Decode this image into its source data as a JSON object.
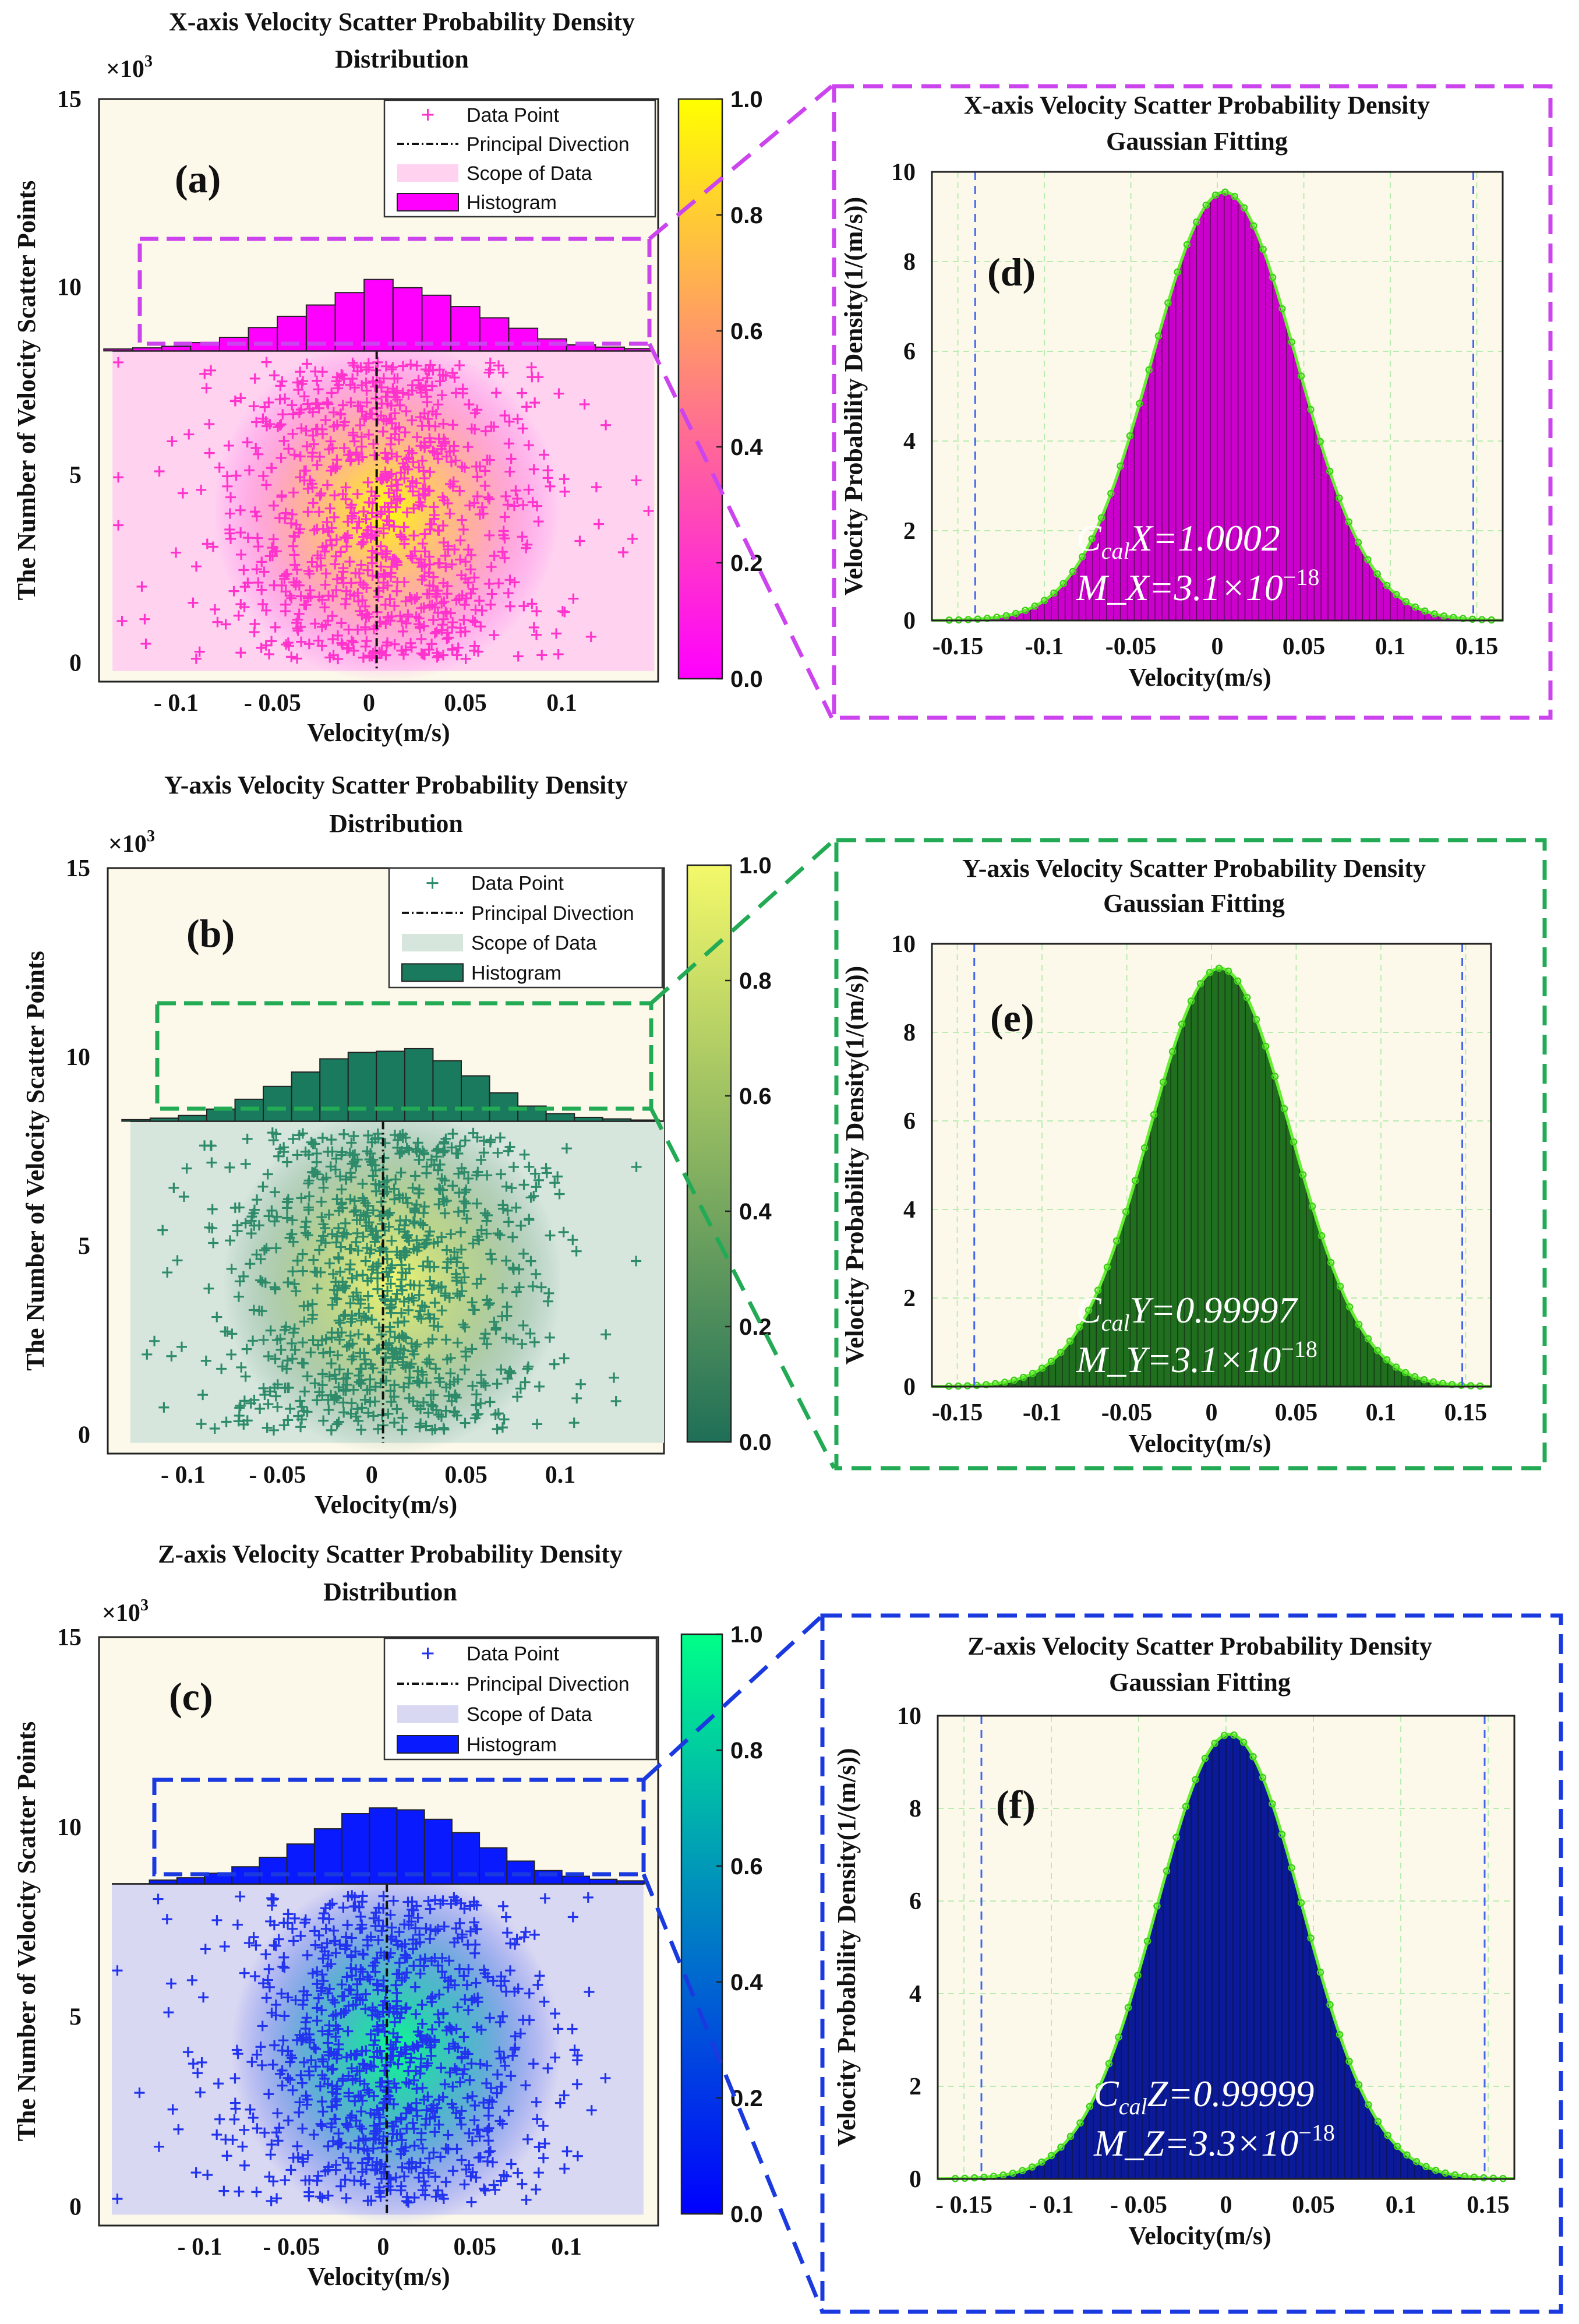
{
  "scale_note": "×10",
  "scale_exp": "3",
  "chart_data": [
    {
      "type": "scatter",
      "panel": "(a)",
      "axis": "X",
      "title_line1": "X-axis Velocity Scatter Probability Density",
      "title_line2": "Distribution",
      "xlabel": "Velocity(m/s)",
      "ylabel": "The Number of Velocity Scatter Points",
      "xlim": [
        -0.14,
        0.15
      ],
      "ylim": [
        -0.5,
        15
      ],
      "xticks": [
        "- 0.1",
        "- 0.05",
        "0",
        "0.05",
        "0.1"
      ],
      "xtick_values": [
        -0.1,
        -0.05,
        0,
        0.05,
        0.1
      ],
      "yticks": [
        "0",
        "5",
        "10",
        "15"
      ],
      "ytick_values": [
        0,
        5,
        10,
        15
      ],
      "scope_xrange": [
        -0.133,
        0.148
      ],
      "scope_top": 8.3,
      "histogram_centers": [
        -0.13,
        -0.115,
        -0.1,
        -0.085,
        -0.07,
        -0.055,
        -0.04,
        -0.025,
        -0.01,
        0.005,
        0.02,
        0.035,
        0.05,
        0.065,
        0.08,
        0.095,
        0.11,
        0.125,
        0.14
      ],
      "histogram_tops": [
        8.35,
        8.38,
        8.42,
        8.52,
        8.66,
        8.92,
        9.22,
        9.52,
        9.85,
        10.2,
        9.98,
        9.78,
        9.48,
        9.18,
        8.9,
        8.62,
        8.46,
        8.4,
        8.36
      ],
      "principal_direction_x": 0.004,
      "marker": "+",
      "colorbar": {
        "ticks": [
          "0.0",
          "0.2",
          "0.4",
          "0.6",
          "0.8",
          "1.0"
        ],
        "low": "#ff00ff",
        "high": "#ffff00"
      },
      "legend": [
        "Data Point",
        "Principal Divection",
        "Scope of Data",
        "Histogram"
      ],
      "colors": {
        "marker": "#ff33cc",
        "scope": "#ffd2f0",
        "hist": "#ff00ff",
        "bg": "#fcf9ea",
        "box": "#cc44ee"
      }
    },
    {
      "type": "scatter",
      "panel": "(b)",
      "axis": "Y",
      "title_line1": "Y-axis Velocity Scatter Probability Density",
      "title_line2": "Distribution",
      "xlabel": "Velocity(m/s)",
      "ylabel": "The Number of Velocity Scatter Points",
      "xlim": [
        -0.14,
        0.155
      ],
      "ylim": [
        -0.5,
        15
      ],
      "xticks": [
        "- 0.1",
        "- 0.05",
        "0",
        "0.05",
        "0.1"
      ],
      "xtick_values": [
        -0.1,
        -0.05,
        0,
        0.05,
        0.1
      ],
      "yticks": [
        "0",
        "5",
        "10",
        "15"
      ],
      "ytick_values": [
        0,
        5,
        10,
        15
      ],
      "scope_xrange": [
        -0.128,
        0.155
      ],
      "scope_top": 8.3,
      "histogram_centers": [
        -0.125,
        -0.11,
        -0.095,
        -0.08,
        -0.065,
        -0.05,
        -0.035,
        -0.02,
        -0.005,
        0.01,
        0.025,
        0.04,
        0.055,
        0.07,
        0.085,
        0.1,
        0.115,
        0.13,
        0.145
      ],
      "histogram_tops": [
        8.34,
        8.38,
        8.45,
        8.62,
        8.88,
        9.22,
        9.6,
        9.95,
        10.12,
        10.15,
        10.22,
        9.9,
        9.5,
        9.05,
        8.7,
        8.5,
        8.4,
        8.36,
        8.33
      ],
      "principal_direction_x": 0.006,
      "marker": "+",
      "colorbar": {
        "ticks": [
          "0.0",
          "0.2",
          "0.4",
          "0.6",
          "0.8",
          "1.0"
        ],
        "low": "#1f6f57",
        "high": "#f4f96a"
      },
      "legend": [
        "Data Point",
        "Principal Divection",
        "Scope of Data",
        "Histogram"
      ],
      "colors": {
        "marker": "#2e8b6a",
        "scope": "#d6e6dc",
        "hist": "#1a7a5e",
        "bg": "#fcf9ea",
        "box": "#22aa55"
      }
    },
    {
      "type": "scatter",
      "panel": "(c)",
      "axis": "Z",
      "title_line1": "Z-axis Velocity Scatter Probability Density",
      "title_line2": "Distribution",
      "xlabel": "Velocity(m/s)",
      "ylabel": "The Number of Velocity Scatter Points",
      "xlim": [
        -0.155,
        0.15
      ],
      "ylim": [
        -0.5,
        15
      ],
      "xticks": [
        "- 0.1",
        "- 0.05",
        "0",
        "0.05",
        "0.1"
      ],
      "xtick_values": [
        -0.1,
        -0.05,
        0,
        0.05,
        0.1
      ],
      "yticks": [
        "0",
        "5",
        "10",
        "15"
      ],
      "ytick_values": [
        0,
        5,
        10,
        15
      ],
      "scope_xrange": [
        -0.148,
        0.142
      ],
      "scope_top": 8.5,
      "histogram_centers": [
        -0.12,
        -0.105,
        -0.09,
        -0.075,
        -0.06,
        -0.045,
        -0.03,
        -0.015,
        0.0,
        0.015,
        0.03,
        0.045,
        0.06,
        0.075,
        0.09,
        0.105,
        0.12,
        0.135
      ],
      "histogram_tops": [
        8.6,
        8.66,
        8.78,
        8.95,
        9.2,
        9.55,
        9.95,
        10.35,
        10.5,
        10.45,
        10.2,
        9.85,
        9.45,
        9.1,
        8.85,
        8.7,
        8.62,
        8.58
      ],
      "principal_direction_x": 0.002,
      "marker": "+",
      "colorbar": {
        "ticks": [
          "0.0",
          "0.2",
          "0.4",
          "0.6",
          "0.8",
          "1.0"
        ],
        "low": "#0000ff",
        "high": "#00ff88"
      },
      "legend": [
        "Data Point",
        "Principal Divection",
        "Scope of Data",
        "Histogram"
      ],
      "colors": {
        "marker": "#2233ee",
        "scope": "#d8d8f2",
        "hist": "#0a1aff",
        "bg": "#fcf9ea",
        "box": "#1a3ae0"
      }
    },
    {
      "type": "area",
      "panel": "(d)",
      "axis": "X",
      "title_line1": "X-axis Velocity Scatter Probability Density",
      "title_line2": "Gaussian Fitting",
      "xlabel": "Velocity(m/s)",
      "ylabel": "Velocity Probability Density(1/(m/s))",
      "xlim": [
        -0.165,
        0.165
      ],
      "ylim": [
        0,
        10
      ],
      "xticks": [
        "-0.15",
        "-0.1",
        "-0.05",
        "0",
        "0.05",
        "0.1",
        "0.15"
      ],
      "xtick_values": [
        -0.15,
        -0.1,
        -0.05,
        0,
        0.05,
        0.1,
        0.15
      ],
      "yticks": [
        "0",
        "2",
        "4",
        "6",
        "8",
        "10"
      ],
      "ytick_values": [
        0,
        2,
        4,
        6,
        8,
        10
      ],
      "gaussian_mean": 0.004,
      "gaussian_sigma": 0.042,
      "gaussian_peak": 9.55,
      "vlines": [
        -0.14,
        0.148
      ],
      "annotation_c_sub": "cal",
      "annotation_c_label": "X=1.0002",
      "annotation_m": "M_X=3.1×10",
      "annotation_m_exp": "−18",
      "grid": true,
      "colors": {
        "fill": "#cc00cc",
        "curve": "#66ee33",
        "bg": "#fcf9ea",
        "box": "#cc44ee"
      }
    },
    {
      "type": "area",
      "panel": "(e)",
      "axis": "Y",
      "title_line1": "Y-axis Velocity Scatter Probability Density",
      "title_line2": "Gaussian Fitting",
      "xlabel": "Velocity(m/s)",
      "ylabel": "Velocity Probability Density(1/(m/s))",
      "xlim": [
        -0.165,
        0.165
      ],
      "ylim": [
        0,
        10
      ],
      "xticks": [
        "-0.15",
        "-0.1",
        "-0.05",
        "0",
        "0.05",
        "0.1",
        "0.15"
      ],
      "xtick_values": [
        -0.15,
        -0.1,
        -0.05,
        0,
        0.05,
        0.1,
        0.15
      ],
      "yticks": [
        "0",
        "2",
        "4",
        "6",
        "8",
        "10"
      ],
      "ytick_values": [
        0,
        2,
        4,
        6,
        8,
        10
      ],
      "gaussian_mean": 0.005,
      "gaussian_sigma": 0.042,
      "gaussian_peak": 9.45,
      "vlines": [
        -0.14,
        0.148
      ],
      "annotation_c_sub": "cal",
      "annotation_c_label": "Y=0.99997",
      "annotation_m": "M_Y=3.1×10",
      "annotation_m_exp": "−18",
      "grid": true,
      "colors": {
        "fill": "#1f6f1f",
        "curve": "#66ee33",
        "bg": "#fcf9ea",
        "box": "#22aa55"
      }
    },
    {
      "type": "area",
      "panel": "(f)",
      "axis": "Z",
      "title_line1": "Z-axis Velocity Scatter Probability Density",
      "title_line2": "Gaussian Fitting",
      "xlabel": "Velocity(m/s)",
      "ylabel": "Velocity Probability Density(1/(m/s))",
      "xlim": [
        -0.165,
        0.165
      ],
      "ylim": [
        0,
        10
      ],
      "xticks": [
        "- 0.15",
        "- 0.1",
        "- 0.05",
        "0",
        "0.05",
        "0.1",
        "0.15"
      ],
      "xtick_values": [
        -0.15,
        -0.1,
        -0.05,
        0,
        0.05,
        0.1,
        0.15
      ],
      "yticks": [
        "0",
        "2",
        "4",
        "6",
        "8",
        "10"
      ],
      "ytick_values": [
        0,
        2,
        4,
        6,
        8,
        10
      ],
      "gaussian_mean": 0.002,
      "gaussian_sigma": 0.042,
      "gaussian_peak": 9.6,
      "vlines": [
        -0.14,
        0.148
      ],
      "annotation_c_sub": "cal",
      "annotation_c_label": "Z=0.99999",
      "annotation_m": "M_Z=3.3×10",
      "annotation_m_exp": "−18",
      "grid": true,
      "colors": {
        "fill": "#0a1a9a",
        "curve": "#66ee33",
        "bg": "#fcf9ea",
        "box": "#1a3ae0"
      }
    }
  ]
}
